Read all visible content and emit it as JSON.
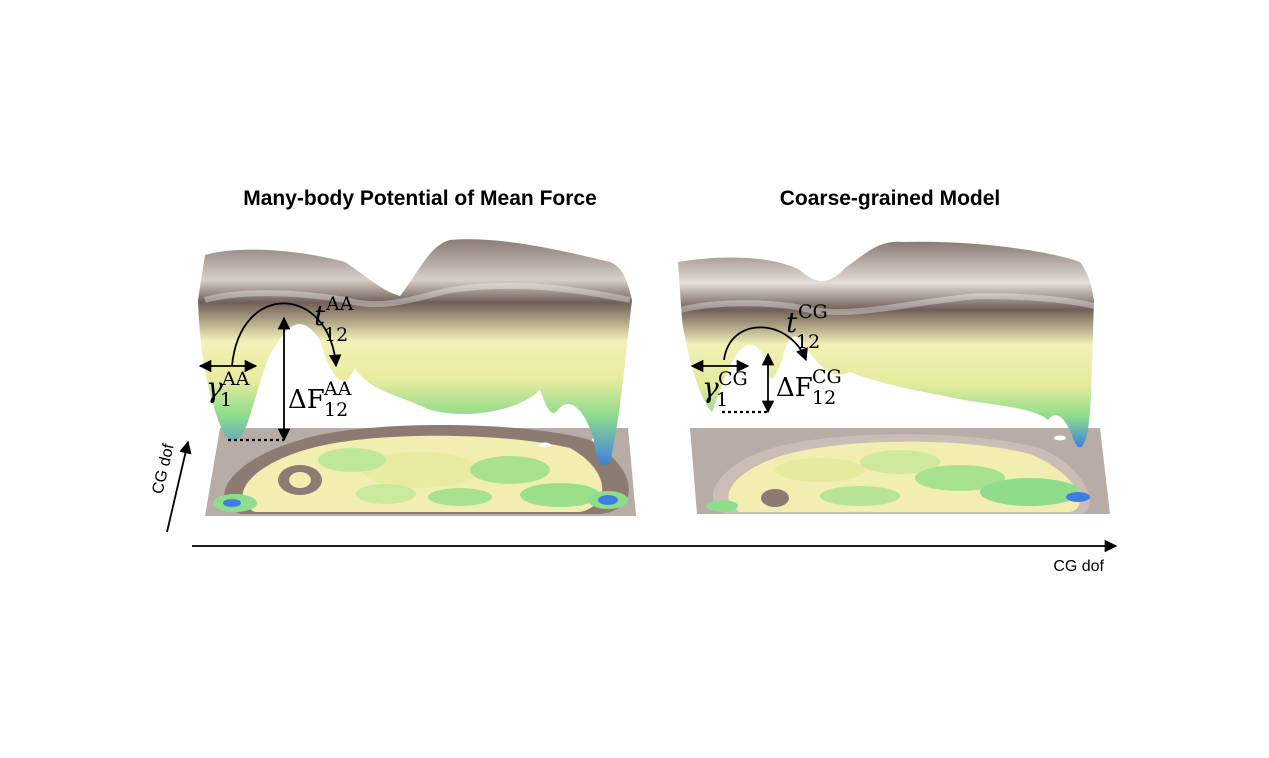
{
  "titles": {
    "left": "Many-body Potential of Mean Force",
    "right": "Coarse-grained Model"
  },
  "axes": {
    "x_label": "CG dof",
    "y_label": "CG dof"
  },
  "left_panel": {
    "rate_symbol": "t",
    "rate_sub": "12",
    "rate_sup": "AA",
    "friction_symbol": "γ",
    "friction_sub": "1",
    "friction_sup": "AA",
    "barrier_symbol": "ΔF",
    "barrier_sub": "12",
    "barrier_sup": "AA"
  },
  "right_panel": {
    "rate_symbol": "t",
    "rate_sub": "12",
    "rate_sup": "CG",
    "friction_symbol": "γ",
    "friction_sub": "1",
    "friction_sup": "CG",
    "barrier_symbol": "ΔF",
    "barrier_sub": "12",
    "barrier_sup": "CG"
  },
  "colors": {
    "surface_top": "#7d6e68",
    "surface_mid": "#f0eeb0",
    "surface_low": "#8fdc8c",
    "surface_min": "#3d7fe0",
    "contour_base": "#b8aca6"
  }
}
